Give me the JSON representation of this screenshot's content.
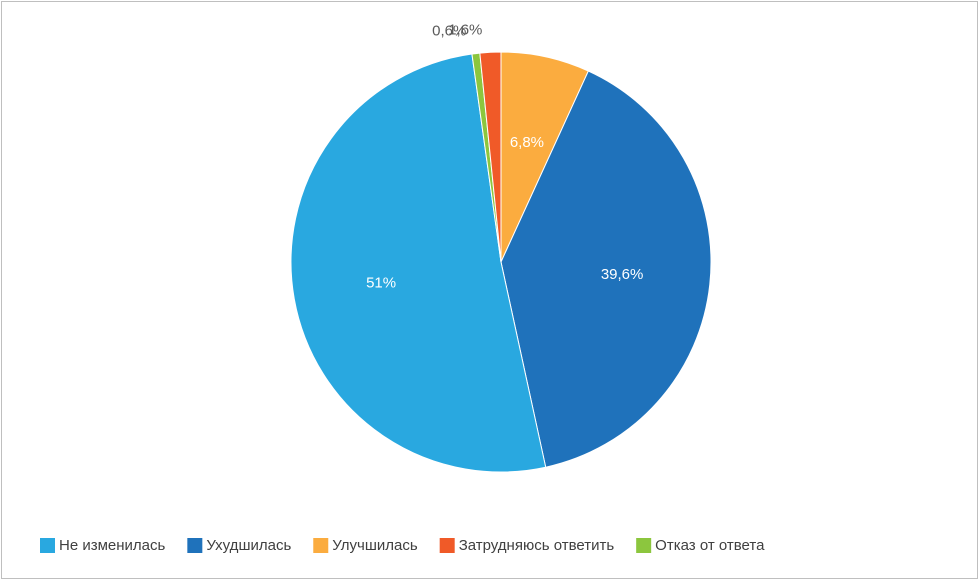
{
  "chart_data": {
    "type": "pie",
    "categories": [
      "Не изменилась",
      "Ухудшилась",
      "Улучшилась",
      "Затрудняюсь ответить",
      "Отказ от ответа"
    ],
    "values": [
      51,
      39.6,
      6.8,
      1.6,
      0.6
    ],
    "value_labels": [
      "51%",
      "39,6%",
      "6,8%",
      "1,6%",
      "0,6%"
    ],
    "colors": [
      "#29a8e0",
      "#1f72bb",
      "#fbac3f",
      "#f05a28",
      "#8cc63e"
    ],
    "legend": "bottom"
  }
}
